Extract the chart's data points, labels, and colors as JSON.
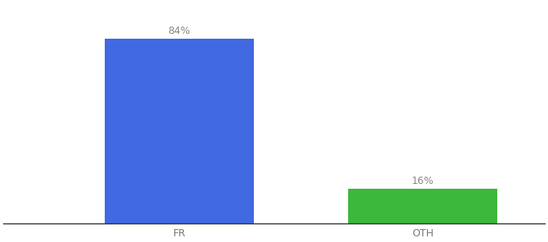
{
  "categories": [
    "FR",
    "OTH"
  ],
  "values": [
    84,
    16
  ],
  "bar_colors": [
    "#4169E1",
    "#3CB83C"
  ],
  "labels": [
    "84%",
    "16%"
  ],
  "ylim": [
    0,
    100
  ],
  "background_color": "#ffffff",
  "label_fontsize": 9,
  "tick_fontsize": 9,
  "bar_width": 0.55,
  "xlim": [
    -0.2,
    1.8
  ]
}
